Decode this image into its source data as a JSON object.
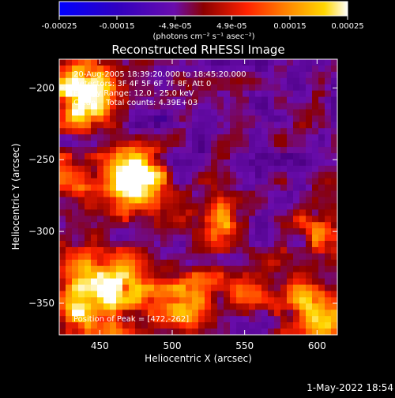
{
  "colorbar": {
    "ticks": [
      "-0.00025",
      "-0.00015",
      "-4.9e-05",
      "4.9e-05",
      "0.00015",
      "0.00025"
    ],
    "tick_values": [
      -0.00025,
      -0.00015,
      -4.9e-05,
      4.9e-05,
      0.00015,
      0.00025
    ],
    "range": [
      -0.00025,
      0.00025
    ],
    "unit_label": "(photons cm⁻² s⁻¹ asec⁻²)"
  },
  "chart_data": {
    "type": "heatmap",
    "title": "Reconstructed RHESSI Image",
    "xlabel": "Heliocentric X (arcsec)",
    "ylabel": "Heliocentric Y (arcsec)",
    "xlim": [
      422,
      614
    ],
    "ylim": [
      -372,
      -180
    ],
    "x_ticks": [
      {
        "value": 450,
        "label": "450"
      },
      {
        "value": 500,
        "label": "500"
      },
      {
        "value": 550,
        "label": "550"
      },
      {
        "value": 600,
        "label": "600"
      }
    ],
    "y_ticks": [
      {
        "value": -200,
        "label": "−200"
      },
      {
        "value": -250,
        "label": "−250"
      },
      {
        "value": -300,
        "label": "−300"
      },
      {
        "value": -350,
        "label": "−350"
      }
    ],
    "colormap": [
      "#0000ff",
      "#4b0082",
      "#6a0dad",
      "#8b0000",
      "#ff2200",
      "#ff8c00",
      "#ffd700",
      "#ffffff"
    ],
    "annotations": [
      "20-Aug-2005 18:39:20.000 to 18:45:20.000",
      "Detectors: 3F 4F 5F 6F 7F 8F, Att 0",
      "Energy Range: 12.0 - 25.0 keV",
      "Clean    Total counts: 4.39E+03"
    ],
    "peak_label": "Position of Peak = [472,-262]",
    "peak": [
      472,
      -262
    ]
  },
  "timestamp": "1-May-2022 18:54"
}
